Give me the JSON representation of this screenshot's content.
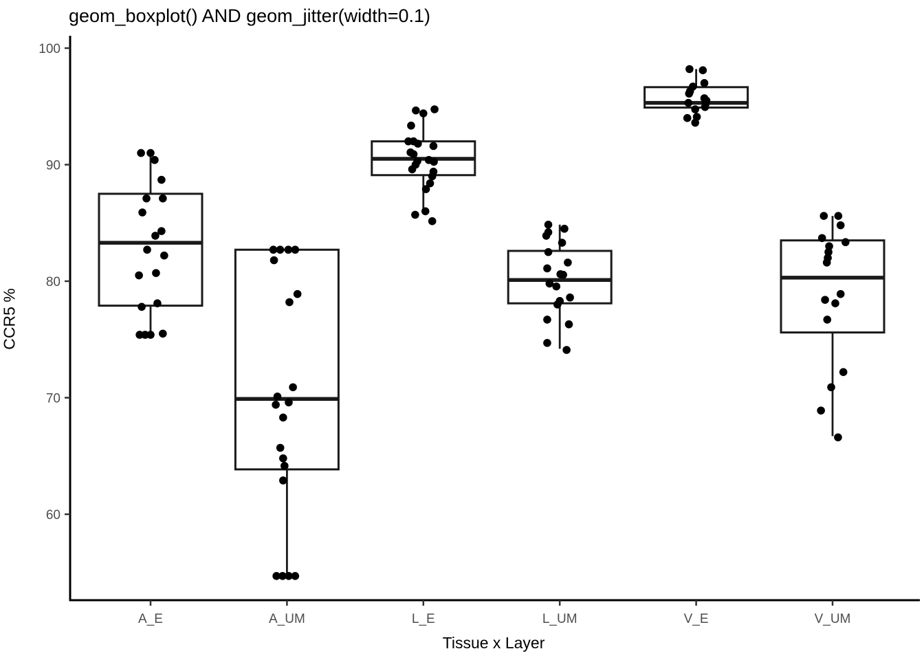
{
  "title": "geom_boxplot() AND geom_jitter(width=0.1)",
  "y_axis": {
    "label": "CCR5 %",
    "tick_labels": [
      "100",
      "90",
      "80",
      "70",
      "60"
    ]
  },
  "x_axis": {
    "label": "Tissue x Layer",
    "tick_labels": [
      "A_E",
      "A_UM",
      "L_E",
      "L_UM",
      "V_E",
      "V_UM"
    ]
  },
  "colors": {
    "background": "#FFFFFF",
    "axis_line": "#000000",
    "tick_mark": "#333333",
    "tick_label": "#4D4D4D",
    "title_text": "#000000",
    "box_stroke": "#1A1A1A",
    "box_fill": "#FFFFFF",
    "median": "#1A1A1A",
    "point": "#000000"
  },
  "chart_data": {
    "type": "boxplot",
    "title": "geom_boxplot() AND geom_jitter(width=0.1)",
    "xlabel": "Tissue x Layer",
    "ylabel": "CCR5 %",
    "categories": [
      "A_E",
      "A_UM",
      "L_E",
      "L_UM",
      "V_E",
      "V_UM"
    ],
    "ylim": [
      52.6,
      100.9
    ],
    "yticks": [
      100,
      90,
      80,
      70,
      60
    ],
    "grid": false,
    "legend": "none",
    "jitter_width": 0.1,
    "series": [
      {
        "name": "A_E",
        "whisker_low": 75.5,
        "q1": 77.9,
        "median": 83.3,
        "q3": 87.5,
        "whisker_high": 90.9,
        "points": [
          [
            -0.07,
            91.0
          ],
          [
            0.0,
            91.0
          ],
          [
            0.03,
            90.4
          ],
          [
            0.08,
            88.7
          ],
          [
            -0.03,
            87.1
          ],
          [
            0.09,
            87.1
          ],
          [
            -0.06,
            85.9
          ],
          [
            0.08,
            84.3
          ],
          [
            0.035,
            83.9
          ],
          [
            -0.025,
            82.7
          ],
          [
            0.1,
            82.2
          ],
          [
            0.04,
            80.7
          ],
          [
            -0.085,
            80.5
          ],
          [
            0.05,
            78.1
          ],
          [
            -0.065,
            77.8
          ],
          [
            -0.08,
            75.4
          ],
          [
            -0.04,
            75.4
          ],
          [
            0.0,
            75.4
          ],
          [
            0.09,
            75.5
          ]
        ]
      },
      {
        "name": "A_UM",
        "whisker_low": 54.7,
        "q1": 63.85,
        "median": 69.9,
        "q3": 82.7,
        "whisker_high": 82.7,
        "points": [
          [
            -0.1,
            82.7
          ],
          [
            -0.05,
            82.7
          ],
          [
            0.01,
            82.7
          ],
          [
            0.06,
            82.7
          ],
          [
            -0.095,
            81.8
          ],
          [
            0.077,
            78.9
          ],
          [
            0.018,
            78.2
          ],
          [
            0.044,
            70.9
          ],
          [
            -0.07,
            70.1
          ],
          [
            0.013,
            69.6
          ],
          [
            -0.082,
            69.4
          ],
          [
            -0.028,
            68.3
          ],
          [
            -0.049,
            65.7
          ],
          [
            -0.028,
            64.8
          ],
          [
            -0.018,
            64.15
          ],
          [
            -0.028,
            62.9
          ],
          [
            -0.077,
            54.7
          ],
          [
            -0.032,
            54.7
          ],
          [
            0.013,
            54.7
          ],
          [
            0.06,
            54.7
          ]
        ]
      },
      {
        "name": "L_E",
        "whisker_low": 86.0,
        "q1": 89.1,
        "median": 90.5,
        "q3": 92.0,
        "whisker_high": 94.5,
        "points": [
          [
            -0.055,
            94.65
          ],
          [
            0.082,
            94.75
          ],
          [
            0.0,
            94.4
          ],
          [
            -0.09,
            93.35
          ],
          [
            -0.11,
            92.0
          ],
          [
            -0.072,
            92.0
          ],
          [
            -0.04,
            91.8
          ],
          [
            0.074,
            91.6
          ],
          [
            -0.094,
            91.05
          ],
          [
            -0.072,
            90.9
          ],
          [
            0.04,
            90.4
          ],
          [
            -0.044,
            90.3
          ],
          [
            0.077,
            90.25
          ],
          [
            -0.057,
            90.0
          ],
          [
            -0.082,
            89.6
          ],
          [
            0.074,
            89.4
          ],
          [
            0.065,
            89.0
          ],
          [
            0.049,
            88.4
          ],
          [
            0.019,
            87.9
          ],
          [
            0.015,
            86.0
          ],
          [
            -0.06,
            85.7
          ],
          [
            0.065,
            85.15
          ]
        ]
      },
      {
        "name": "L_UM",
        "whisker_low": 74.2,
        "q1": 78.1,
        "median": 80.1,
        "q3": 82.6,
        "whisker_high": 84.85,
        "points": [
          [
            -0.084,
            84.85
          ],
          [
            0.034,
            84.5
          ],
          [
            -0.084,
            84.2
          ],
          [
            -0.099,
            83.9
          ],
          [
            0.017,
            83.3
          ],
          [
            -0.084,
            82.5
          ],
          [
            0.059,
            81.6
          ],
          [
            -0.092,
            81.1
          ],
          [
            0.005,
            80.6
          ],
          [
            0.025,
            80.55
          ],
          [
            -0.075,
            79.8
          ],
          [
            -0.025,
            79.55
          ],
          [
            0.075,
            78.6
          ],
          [
            0.0,
            78.3
          ],
          [
            -0.017,
            78.0
          ],
          [
            -0.092,
            76.7
          ],
          [
            0.067,
            76.3
          ],
          [
            -0.092,
            74.7
          ],
          [
            0.05,
            74.1
          ]
        ]
      },
      {
        "name": "V_E",
        "whisker_low": 93.6,
        "q1": 94.9,
        "median": 95.3,
        "q3": 96.65,
        "whisker_high": 98.2,
        "points": [
          [
            -0.049,
            98.2
          ],
          [
            0.049,
            98.1
          ],
          [
            0.06,
            97.0
          ],
          [
            -0.024,
            96.7
          ],
          [
            -0.045,
            96.3
          ],
          [
            -0.052,
            96.1
          ],
          [
            0.06,
            95.7
          ],
          [
            0.075,
            95.5
          ],
          [
            -0.057,
            95.3
          ],
          [
            0.069,
            95.2
          ],
          [
            0.065,
            94.95
          ],
          [
            -0.007,
            94.75
          ],
          [
            0.005,
            94.1
          ],
          [
            -0.065,
            94.0
          ],
          [
            -0.007,
            93.6
          ]
        ]
      },
      {
        "name": "V_UM",
        "whisker_low": 66.7,
        "q1": 75.6,
        "median": 80.3,
        "q3": 83.5,
        "whisker_high": 85.6,
        "points": [
          [
            -0.064,
            85.6
          ],
          [
            0.042,
            85.6
          ],
          [
            0.059,
            84.8
          ],
          [
            -0.077,
            83.7
          ],
          [
            0.095,
            83.35
          ],
          [
            -0.025,
            83.0
          ],
          [
            -0.03,
            82.5
          ],
          [
            -0.035,
            82.0
          ],
          [
            -0.042,
            81.6
          ],
          [
            0.059,
            78.9
          ],
          [
            -0.055,
            78.4
          ],
          [
            0.02,
            78.1
          ],
          [
            -0.039,
            76.7
          ],
          [
            0.079,
            72.2
          ],
          [
            -0.01,
            70.9
          ],
          [
            -0.085,
            68.9
          ],
          [
            0.04,
            66.6
          ]
        ]
      }
    ]
  }
}
